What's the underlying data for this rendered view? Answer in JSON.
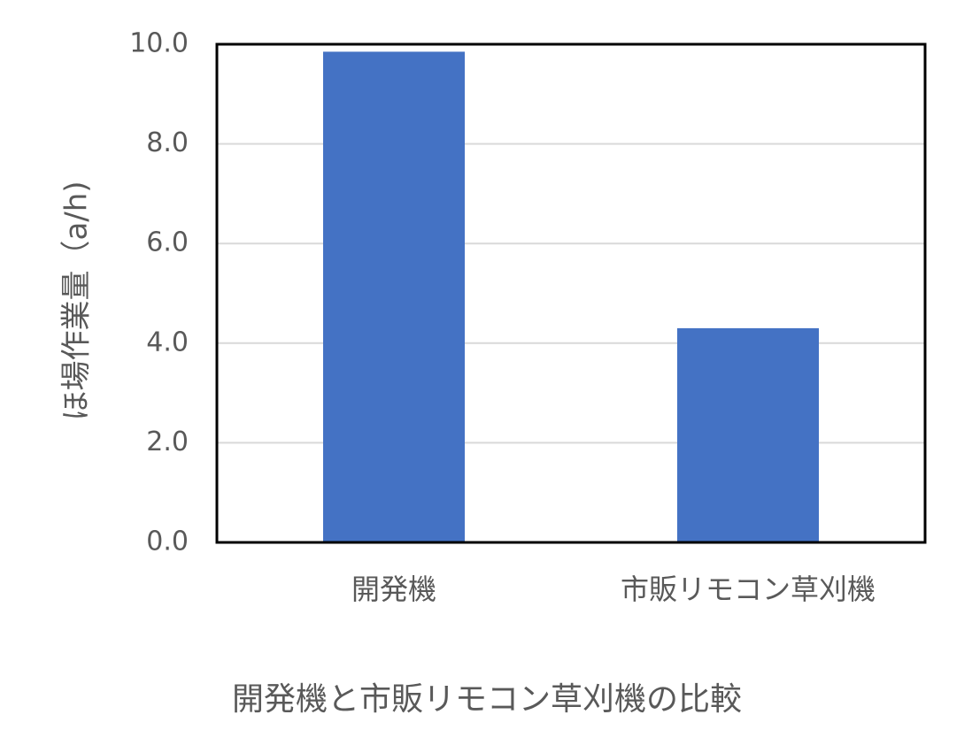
{
  "chart_data": {
    "type": "bar",
    "title": "開発機と市販リモコン草刈機の比較",
    "y_label": "ほ場作業量（a/h)",
    "categories": [
      "開発機",
      "市販リモコン草刈機"
    ],
    "values": [
      9.85,
      4.3
    ],
    "color": "#4472c4",
    "ylim": [
      0,
      10
    ],
    "yticks": [
      {
        "value": 0,
        "label": "0.0"
      },
      {
        "value": 2,
        "label": "2.0"
      },
      {
        "value": 4,
        "label": "4.0"
      },
      {
        "value": 6,
        "label": "6.0"
      },
      {
        "value": 8,
        "label": "8.0"
      },
      {
        "value": 10,
        "label": "10.0"
      }
    ],
    "grid": true
  }
}
